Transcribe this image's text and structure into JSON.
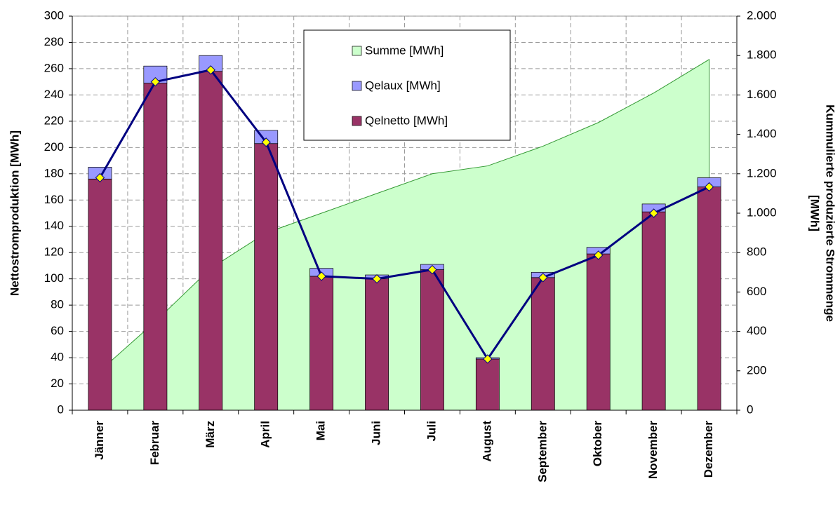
{
  "chart_data": {
    "type": "bar",
    "categories": [
      "Jänner",
      "Februar",
      "März",
      "April",
      "Mai",
      "Juni",
      "Juli",
      "August",
      "September",
      "Oktober",
      "November",
      "Dezember"
    ],
    "ylabel": "Nettostromproduktion [MWh]",
    "y2label": [
      "Kummulierte produzierte Strommenge",
      "[MWh]"
    ],
    "ylim": [
      0,
      300
    ],
    "yticks": [
      0,
      20,
      40,
      60,
      80,
      100,
      120,
      140,
      160,
      180,
      200,
      220,
      240,
      260,
      280,
      300
    ],
    "y2lim": [
      0,
      2000
    ],
    "y2ticks": [
      0,
      200,
      400,
      600,
      800,
      {
        "value": 1000,
        "label": "1.000"
      },
      {
        "value": 1200,
        "label": "1.200"
      },
      {
        "value": 1400,
        "label": "1.400"
      },
      {
        "value": 1600,
        "label": "1.600"
      },
      {
        "value": 1800,
        "label": "1.800"
      },
      {
        "value": 2000,
        "label": "2.000"
      }
    ],
    "grid": true,
    "series": [
      {
        "name": "Summe [MWh]",
        "type": "area",
        "axis": "y2",
        "color": "#ccffcc",
        "stroke": "#339933",
        "values": [
          200,
          450,
          720,
          900,
          1000,
          1100,
          1200,
          1240,
          1340,
          1460,
          1610,
          1780
        ]
      },
      {
        "name": "Qelaux [MWh]",
        "type": "bar",
        "color": "#9999ff",
        "values": [
          9,
          13,
          12,
          10,
          6,
          3,
          4,
          1,
          4,
          5,
          6,
          7
        ]
      },
      {
        "name": "Qelnetto [MWh]",
        "type": "bar",
        "color": "#993366",
        "values": [
          176,
          249,
          258,
          203,
          102,
          100,
          107,
          39,
          101,
          119,
          151,
          170
        ]
      },
      {
        "type": "line",
        "color": "#000080",
        "marker_color": "#ffff00",
        "values": [
          177,
          250,
          259,
          204,
          102,
          100,
          107,
          39,
          101,
          118,
          150,
          170
        ]
      }
    ]
  }
}
